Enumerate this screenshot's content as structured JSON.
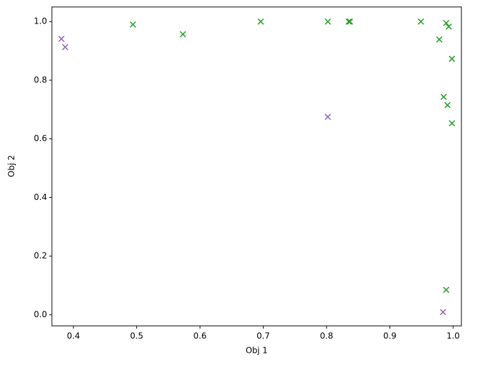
{
  "chart_data": {
    "type": "scatter",
    "x_label": "Obj 1",
    "y_label": "Obj 2",
    "xlim": [
      0.366,
      1.013
    ],
    "ylim": [
      -0.038,
      1.05
    ],
    "xticks": [
      {
        "value": 0.4,
        "label": "0.4"
      },
      {
        "value": 0.5,
        "label": "0.5"
      },
      {
        "value": 0.6,
        "label": "0.6"
      },
      {
        "value": 0.7,
        "label": "0.7"
      },
      {
        "value": 0.8,
        "label": "0.8"
      },
      {
        "value": 0.9,
        "label": "0.9"
      },
      {
        "value": 1.0,
        "label": "1.0"
      }
    ],
    "yticks": [
      {
        "value": 0.0,
        "label": "0.0"
      },
      {
        "value": 0.2,
        "label": "0.2"
      },
      {
        "value": 0.4,
        "label": "0.4"
      },
      {
        "value": 0.6,
        "label": "0.6"
      },
      {
        "value": 0.8,
        "label": "0.8"
      },
      {
        "value": 1.0,
        "label": "1.0"
      }
    ],
    "grid": false,
    "series": [
      {
        "color": "#2ca02c",
        "x": [
          0.494,
          0.573,
          0.696,
          0.802,
          0.835,
          0.837,
          0.949,
          0.989,
          0.993,
          0.978,
          0.998,
          0.985,
          0.991,
          0.998,
          0.989
        ],
        "values": [
          0.99,
          0.957,
          1.0,
          1.0,
          1.0,
          1.0,
          1.0,
          0.995,
          0.983,
          0.939,
          0.873,
          0.743,
          0.715,
          0.653,
          0.085
        ]
      },
      {
        "color": "#9467bd",
        "x": [
          0.381,
          0.387,
          0.802,
          0.984
        ],
        "values": [
          0.941,
          0.913,
          0.675,
          0.009
        ]
      }
    ]
  }
}
